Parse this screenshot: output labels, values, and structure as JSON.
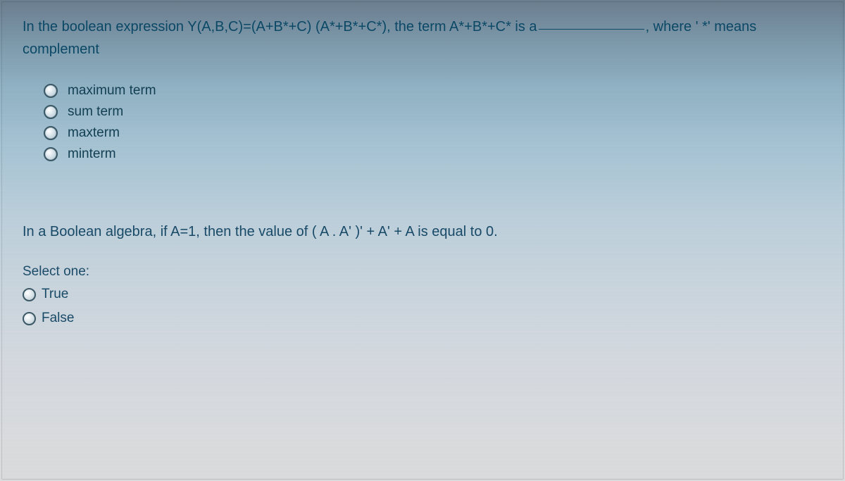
{
  "question1": {
    "prefix": "In the boolean expression Y(A,B,C)=(A+B*+C) (A*+B*+C*), the term A*+B*+C* is a",
    "suffix": ", where ' *' means complement",
    "options": [
      {
        "label": "maximum term"
      },
      {
        "label": "sum term"
      },
      {
        "label": "maxterm"
      },
      {
        "label": "minterm"
      }
    ]
  },
  "question2": {
    "text": "In a Boolean algebra, if A=1, then the value of ( A . A' )' + A' + A is equal to 0.",
    "selectOne": "Select one:",
    "options": [
      {
        "label": "True"
      },
      {
        "label": "False"
      }
    ]
  }
}
